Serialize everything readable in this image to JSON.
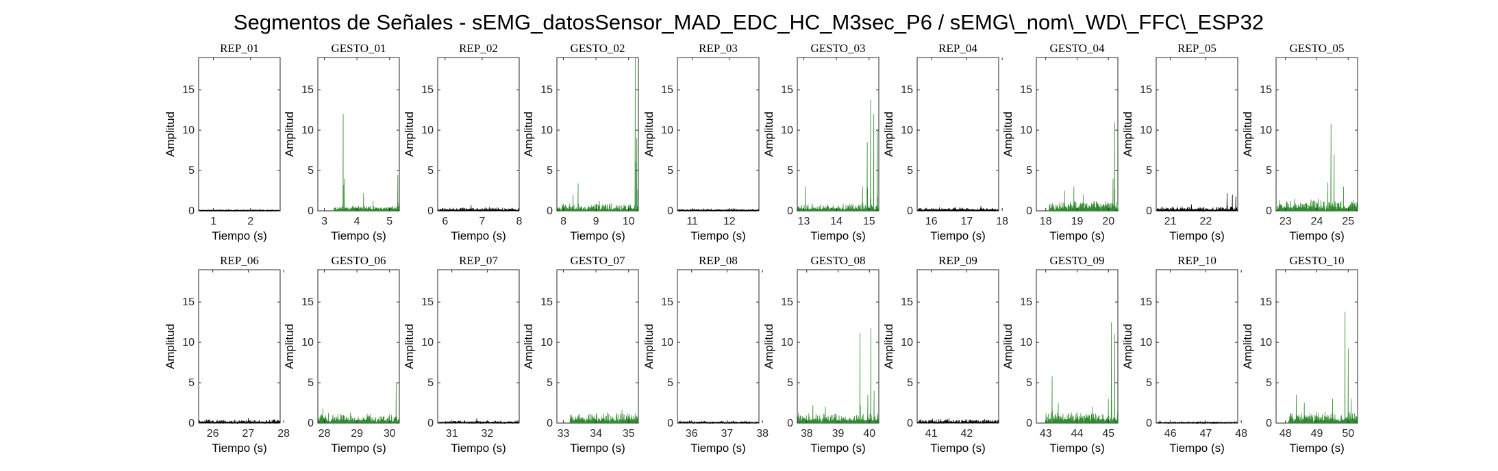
{
  "figure": {
    "title": "Segmentos de Señales - sEMG_datosSensor_MAD_EDC_HC_M3sec_P6 / sEMG\\_nom\\_WD\\_FFC\\_ESP32"
  },
  "colors": {
    "rep": "#000000",
    "gesto": "#2e8b2e",
    "axis": "#262626"
  },
  "chart_data": [
    {
      "type": "line",
      "title": "REP_01",
      "xlabel": "Tiempo (s)",
      "ylabel": "Amplitud",
      "xlim": [
        0.6,
        2.8
      ],
      "ylim": [
        0,
        19
      ],
      "xticks": [
        1,
        2
      ],
      "yticks": [
        0,
        5,
        10,
        15
      ],
      "grid": false,
      "series": [
        {
          "color": "rep",
          "baseline": 0.1,
          "noise": 0.08,
          "peaks": [
            [
              1.4,
              0.2
            ],
            [
              2.2,
              0.2
            ]
          ]
        }
      ]
    },
    {
      "type": "line",
      "title": "GESTO_01",
      "xlabel": "Tiempo (s)",
      "ylabel": "Amplitud",
      "xlim": [
        2.8,
        5.3
      ],
      "ylim": [
        0,
        19
      ],
      "xticks": [
        3,
        4,
        5
      ],
      "yticks": [
        0,
        5,
        10,
        15
      ],
      "grid": false,
      "series": [
        {
          "color": "gesto",
          "baseline": 0.3,
          "noise": 0.4,
          "start": 3.3,
          "peaks": [
            [
              3.58,
              12.0
            ],
            [
              3.62,
              4.0
            ],
            [
              4.2,
              2.2
            ],
            [
              4.5,
              1.2
            ],
            [
              5.25,
              4.5
            ]
          ]
        }
      ]
    },
    {
      "type": "line",
      "title": "REP_02",
      "xlabel": "Tiempo (s)",
      "ylabel": "Amplitud",
      "xlim": [
        5.8,
        8.0
      ],
      "ylim": [
        0,
        19
      ],
      "xticks": [
        6,
        7,
        8
      ],
      "yticks": [
        0,
        5,
        10,
        15
      ],
      "grid": false,
      "series": [
        {
          "color": "rep",
          "baseline": 0.2,
          "noise": 0.25,
          "peaks": [
            [
              6.7,
              0.7
            ],
            [
              7.2,
              0.5
            ]
          ]
        }
      ]
    },
    {
      "type": "line",
      "title": "GESTO_02",
      "xlabel": "Tiempo (s)",
      "ylabel": "Amplitud",
      "xlim": [
        7.8,
        10.3
      ],
      "ylim": [
        0,
        19
      ],
      "xticks": [
        8,
        9,
        10
      ],
      "yticks": [
        0,
        5,
        10,
        15
      ],
      "grid": false,
      "series": [
        {
          "color": "gesto",
          "baseline": 0.3,
          "noise": 0.7,
          "peaks": [
            [
              8.45,
              3.4
            ],
            [
              8.3,
              2.0
            ],
            [
              9.1,
              1.2
            ],
            [
              10.2,
              19.0
            ],
            [
              10.25,
              9.0
            ]
          ]
        }
      ]
    },
    {
      "type": "line",
      "title": "REP_03",
      "xlabel": "Tiempo (s)",
      "ylabel": "Amplitud",
      "xlim": [
        10.6,
        12.8
      ],
      "ylim": [
        0,
        19
      ],
      "xticks": [
        11,
        12
      ],
      "yticks": [
        0,
        5,
        10,
        15
      ],
      "grid": false,
      "series": [
        {
          "color": "rep",
          "baseline": 0.15,
          "noise": 0.15,
          "peaks": [
            [
              11.3,
              0.3
            ],
            [
              12.1,
              0.3
            ]
          ]
        }
      ]
    },
    {
      "type": "line",
      "title": "GESTO_03",
      "xlabel": "Tiempo (s)",
      "ylabel": "Amplitud",
      "xlim": [
        12.8,
        15.3
      ],
      "ylim": [
        0,
        19
      ],
      "xticks": [
        13,
        14,
        15
      ],
      "yticks": [
        0,
        5,
        10,
        15
      ],
      "grid": false,
      "series": [
        {
          "color": "gesto",
          "baseline": 0.3,
          "noise": 0.6,
          "peaks": [
            [
              13.05,
              3.0
            ],
            [
              14.8,
              3.0
            ],
            [
              14.95,
              8.5
            ],
            [
              15.05,
              13.8
            ],
            [
              15.15,
              12.0
            ],
            [
              15.25,
              10.0
            ]
          ]
        }
      ]
    },
    {
      "type": "line",
      "title": "REP_04",
      "xlabel": "Tiempo (s)",
      "ylabel": "Amplitud",
      "xlim": [
        15.6,
        17.9
      ],
      "ylim": [
        0,
        19
      ],
      "xticks": [
        16,
        17,
        18
      ],
      "yticks": [
        0,
        5,
        10,
        15
      ],
      "grid": false,
      "series": [
        {
          "color": "rep",
          "baseline": 0.2,
          "noise": 0.25,
          "peaks": [
            [
              17.4,
              0.6
            ]
          ]
        }
      ]
    },
    {
      "type": "line",
      "title": "GESTO_04",
      "xlabel": "Tiempo (s)",
      "ylabel": "Amplitud",
      "xlim": [
        17.7,
        20.3
      ],
      "ylim": [
        0,
        19
      ],
      "xticks": [
        18,
        19,
        20
      ],
      "yticks": [
        0,
        5,
        10,
        15
      ],
      "grid": false,
      "series": [
        {
          "color": "gesto",
          "baseline": 0.4,
          "noise": 0.9,
          "start": 18.1,
          "peaks": [
            [
              18.6,
              2.5
            ],
            [
              18.9,
              3.0
            ],
            [
              19.2,
              2.0
            ],
            [
              20.2,
              11.0
            ],
            [
              20.15,
              4.0
            ]
          ]
        }
      ]
    },
    {
      "type": "line",
      "title": "REP_05",
      "xlabel": "Tiempo (s)",
      "ylabel": "Amplitud",
      "xlim": [
        20.6,
        22.9
      ],
      "ylim": [
        0,
        19
      ],
      "xticks": [
        21,
        22
      ],
      "yticks": [
        0,
        5,
        10,
        15
      ],
      "grid": false,
      "series": [
        {
          "color": "rep",
          "baseline": 0.2,
          "noise": 0.4,
          "peaks": [
            [
              21.6,
              0.8
            ],
            [
              22.6,
              2.2
            ],
            [
              22.75,
              2.0
            ],
            [
              22.85,
              1.8
            ]
          ]
        }
      ]
    },
    {
      "type": "line",
      "title": "GESTO_05",
      "xlabel": "Tiempo (s)",
      "ylabel": "Amplitud",
      "xlim": [
        22.7,
        25.3
      ],
      "ylim": [
        0,
        19
      ],
      "xticks": [
        23,
        24,
        25
      ],
      "yticks": [
        0,
        5,
        10,
        15
      ],
      "grid": false,
      "series": [
        {
          "color": "gesto",
          "baseline": 0.5,
          "noise": 1.0,
          "peaks": [
            [
              23.3,
              1.5
            ],
            [
              24.35,
              3.5
            ],
            [
              24.45,
              10.8
            ],
            [
              24.55,
              7.0
            ],
            [
              24.85,
              3.0
            ]
          ]
        }
      ]
    },
    {
      "type": "line",
      "title": "REP_06",
      "xlabel": "Tiempo (s)",
      "ylabel": "Amplitud",
      "xlim": [
        25.6,
        27.9
      ],
      "ylim": [
        0,
        19
      ],
      "xticks": [
        26,
        27,
        28
      ],
      "yticks": [
        0,
        5,
        10,
        15
      ],
      "grid": false,
      "series": [
        {
          "color": "rep",
          "baseline": 0.2,
          "noise": 0.35,
          "peaks": [
            [
              27.0,
              0.6
            ]
          ]
        }
      ]
    },
    {
      "type": "line",
      "title": "GESTO_06",
      "xlabel": "Tiempo (s)",
      "ylabel": "Amplitud",
      "xlim": [
        27.8,
        30.3
      ],
      "ylim": [
        0,
        19
      ],
      "xticks": [
        28,
        29,
        30
      ],
      "yticks": [
        0,
        5,
        10,
        15
      ],
      "grid": false,
      "series": [
        {
          "color": "gesto",
          "baseline": 0.4,
          "noise": 0.9,
          "peaks": [
            [
              27.95,
              1.8
            ],
            [
              28.8,
              1.3
            ],
            [
              30.2,
              5.0
            ]
          ]
        }
      ]
    },
    {
      "type": "line",
      "title": "REP_07",
      "xlabel": "Tiempo (s)",
      "ylabel": "Amplitud",
      "xlim": [
        30.6,
        32.9
      ],
      "ylim": [
        0,
        19
      ],
      "xticks": [
        31,
        32
      ],
      "yticks": [
        0,
        5,
        10,
        15
      ],
      "grid": false,
      "series": [
        {
          "color": "rep",
          "baseline": 0.15,
          "noise": 0.2,
          "peaks": [
            [
              31.7,
              0.6
            ]
          ]
        }
      ]
    },
    {
      "type": "line",
      "title": "GESTO_07",
      "xlabel": "Tiempo (s)",
      "ylabel": "Amplitud",
      "xlim": [
        32.8,
        35.3
      ],
      "ylim": [
        0,
        19
      ],
      "xticks": [
        33,
        34,
        35
      ],
      "yticks": [
        0,
        5,
        10,
        15
      ],
      "grid": false,
      "series": [
        {
          "color": "gesto",
          "baseline": 0.5,
          "noise": 0.9,
          "start": 33.2,
          "peaks": [
            [
              34.8,
              1.6
            ],
            [
              35.2,
              1.2
            ]
          ]
        }
      ]
    },
    {
      "type": "line",
      "title": "REP_08",
      "xlabel": "Tiempo (s)",
      "ylabel": "Amplitud",
      "xlim": [
        35.6,
        37.9
      ],
      "ylim": [
        0,
        19
      ],
      "xticks": [
        36,
        37,
        38
      ],
      "yticks": [
        0,
        5,
        10,
        15
      ],
      "grid": false,
      "series": [
        {
          "color": "rep",
          "baseline": 0.15,
          "noise": 0.15,
          "peaks": [
            [
              35.7,
              0.3
            ]
          ]
        }
      ]
    },
    {
      "type": "line",
      "title": "GESTO_08",
      "xlabel": "Tiempo (s)",
      "ylabel": "Amplitud",
      "xlim": [
        37.7,
        40.3
      ],
      "ylim": [
        0,
        19
      ],
      "xticks": [
        38,
        39,
        40
      ],
      "yticks": [
        0,
        5,
        10,
        15
      ],
      "grid": false,
      "series": [
        {
          "color": "gesto",
          "baseline": 0.4,
          "noise": 0.9,
          "peaks": [
            [
              38.2,
              2.2
            ],
            [
              38.6,
              2.0
            ],
            [
              39.7,
              11.2
            ],
            [
              39.95,
              3.5
            ],
            [
              40.05,
              11.8
            ],
            [
              40.15,
              4.0
            ]
          ]
        }
      ]
    },
    {
      "type": "line",
      "title": "REP_09",
      "xlabel": "Tiempo (s)",
      "ylabel": "Amplitud",
      "xlim": [
        40.6,
        42.9
      ],
      "ylim": [
        0,
        19
      ],
      "xticks": [
        41,
        42
      ],
      "yticks": [
        0,
        5,
        10,
        15
      ],
      "grid": false,
      "series": [
        {
          "color": "rep",
          "baseline": 0.2,
          "noise": 0.35,
          "peaks": [
            [
              41.5,
              0.6
            ],
            [
              42.5,
              0.5
            ]
          ]
        }
      ]
    },
    {
      "type": "line",
      "title": "GESTO_09",
      "xlabel": "Tiempo (s)",
      "ylabel": "Amplitud",
      "xlim": [
        42.7,
        45.3
      ],
      "ylim": [
        0,
        19
      ],
      "xticks": [
        43,
        44,
        45
      ],
      "yticks": [
        0,
        5,
        10,
        15
      ],
      "grid": false,
      "series": [
        {
          "color": "gesto",
          "baseline": 0.5,
          "noise": 1.0,
          "start": 43.0,
          "peaks": [
            [
              43.2,
              5.8
            ],
            [
              43.4,
              2.5
            ],
            [
              44.5,
              2.0
            ],
            [
              45.1,
              12.5
            ],
            [
              45.2,
              11.0
            ],
            [
              45.0,
              3.0
            ]
          ]
        }
      ]
    },
    {
      "type": "line",
      "title": "REP_10",
      "xlabel": "Tiempo (s)",
      "ylabel": "Amplitud",
      "xlim": [
        45.6,
        47.9
      ],
      "ylim": [
        0,
        19
      ],
      "xticks": [
        46,
        47,
        48
      ],
      "yticks": [
        0,
        5,
        10,
        15
      ],
      "grid": false,
      "series": [
        {
          "color": "rep",
          "baseline": 0.1,
          "noise": 0.12,
          "peaks": [
            [
              45.7,
              0.3
            ]
          ]
        }
      ]
    },
    {
      "type": "line",
      "title": "GESTO_10",
      "xlabel": "Tiempo (s)",
      "ylabel": "Amplitud",
      "xlim": [
        47.7,
        50.3
      ],
      "ylim": [
        0,
        19
      ],
      "xticks": [
        48,
        49,
        50
      ],
      "yticks": [
        0,
        5,
        10,
        15
      ],
      "grid": false,
      "series": [
        {
          "color": "gesto",
          "baseline": 0.5,
          "noise": 1.0,
          "start": 48.1,
          "peaks": [
            [
              48.35,
              3.5
            ],
            [
              48.6,
              2.5
            ],
            [
              49.5,
              3.0
            ],
            [
              49.9,
              13.8
            ],
            [
              50.0,
              9.2
            ],
            [
              50.1,
              3.0
            ]
          ]
        }
      ]
    }
  ]
}
